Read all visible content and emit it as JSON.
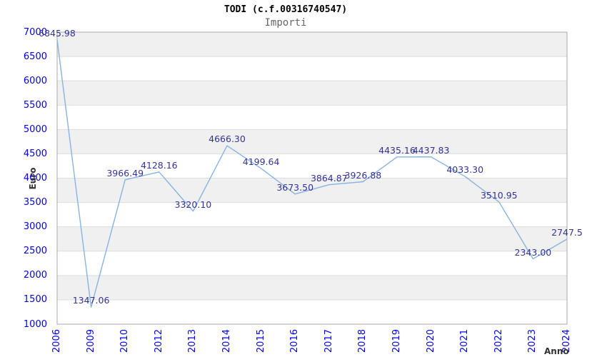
{
  "header": {
    "title": "TODI (c.f.00316740547)",
    "subtitle": "Importi"
  },
  "chart_data": {
    "type": "line",
    "title": "TODI (c.f.00316740547)",
    "subtitle": "Importi",
    "xlabel": "Anno",
    "ylabel": "Euro",
    "categories": [
      "2006",
      "2009",
      "2010",
      "2012",
      "2013",
      "2014",
      "2015",
      "2016",
      "2017",
      "2018",
      "2019",
      "2020",
      "2021",
      "2022",
      "2023",
      "2024"
    ],
    "series": [
      {
        "name": "Importi",
        "values": [
          6845.98,
          1347.06,
          3966.49,
          4128.16,
          3320.1,
          4666.3,
          4199.64,
          3673.5,
          3864.87,
          3926.88,
          4435.16,
          4437.83,
          4033.3,
          3510.95,
          2343.0,
          2747.5
        ],
        "point_labels": [
          "6845.98",
          "1347.06",
          "3966.49",
          "4128.16",
          "3320.10",
          "4666.30",
          "4199.64",
          "3673.50",
          "3864.87",
          "3926.88",
          "4435.16",
          "4437.83",
          "4033.30",
          "3510.95",
          "2343.00",
          "2747.5"
        ]
      }
    ],
    "y_ticks": [
      7000,
      6500,
      6000,
      5500,
      5000,
      4500,
      4000,
      3500,
      3000,
      2500,
      2000,
      1500,
      1000
    ],
    "ylim": [
      1000,
      7000
    ],
    "grid": "horizontal",
    "banded_background": true,
    "legend": "none",
    "colors": {
      "line": "#87b3e3",
      "tick_label": "#0000ee",
      "point_label": "#333399",
      "title": "#000000",
      "subtitle": "#666666",
      "axis_label": "#333333",
      "band": "#f0f0f0",
      "gridline": "#dddddd",
      "border": "#aaaaaa"
    }
  }
}
